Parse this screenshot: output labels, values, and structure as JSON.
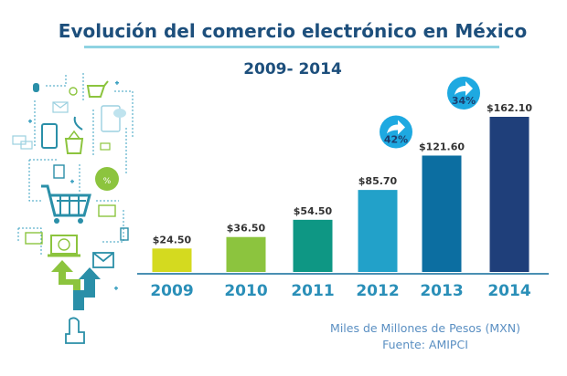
{
  "chart_data": {
    "type": "bar",
    "title": "Evolución del comercio electrónico en México",
    "subtitle": "2009- 2014",
    "categories": [
      "2009",
      "2010",
      "2011",
      "2012",
      "2013",
      "2014"
    ],
    "values": [
      24.5,
      36.5,
      54.5,
      85.7,
      121.6,
      162.1
    ],
    "value_labels": [
      "$24.50",
      "$36.50",
      "$54.50",
      "$85.70",
      "$121.60",
      "$162.10"
    ],
    "bar_colors": [
      "#d4da1f",
      "#8cc43e",
      "#0e9784",
      "#22a1c9",
      "#0c6ea1",
      "#1f3f7a"
    ],
    "growth_badges": [
      {
        "category": "2013",
        "label": "42%"
      },
      {
        "category": "2014",
        "label": "34%"
      }
    ],
    "xlabel": "",
    "ylabel": "",
    "grid": false,
    "legend": "none",
    "units_note": "Miles de Millones de Pesos (MXN)",
    "source_note": "Fuente: AMIPCI"
  },
  "colors": {
    "title": "#1d4f7c",
    "axis": "#4a8fb3",
    "tick_label": "#2a8fb8",
    "value_label": "#333333",
    "badge": "#1ea9e1",
    "note": "#5a8fc2"
  }
}
